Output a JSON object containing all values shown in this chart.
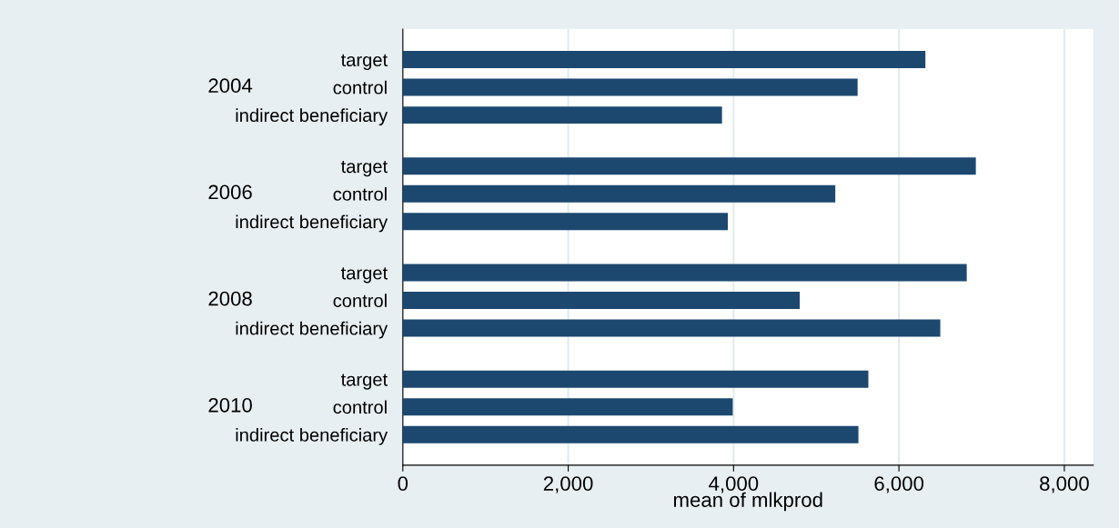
{
  "chart_data": {
    "type": "bar",
    "orientation": "horizontal",
    "xlabel": "mean of mlkprod",
    "categories": [
      "2004",
      "2006",
      "2008",
      "2010"
    ],
    "series": [
      {
        "name": "target",
        "color": "#1c4870",
        "values": [
          6320,
          6930,
          6820,
          5630
        ]
      },
      {
        "name": "control",
        "color": "#1c4870",
        "values": [
          5500,
          5230,
          4800,
          3990
        ]
      },
      {
        "name": "indirect beneficiary",
        "color": "#1c4870",
        "values": [
          3860,
          3930,
          6500,
          5510
        ]
      }
    ],
    "xlim": [
      0,
      8350
    ],
    "xticks": [
      0,
      {
        "value": 2000,
        "label": "2,000"
      },
      {
        "value": 4000,
        "label": "4,000"
      },
      {
        "value": 6000,
        "label": "6,000"
      },
      {
        "value": 8000,
        "label": "8,000"
      }
    ],
    "grid": "x",
    "legend": false
  }
}
